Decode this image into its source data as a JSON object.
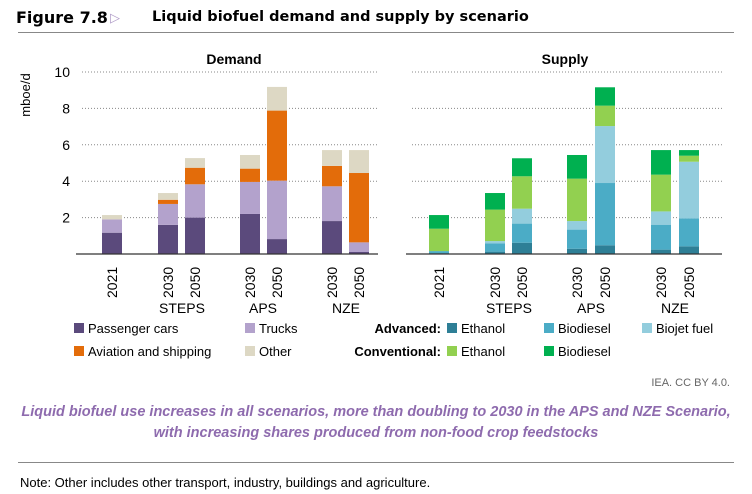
{
  "figure": {
    "label": "Figure 7.8",
    "arrow_icon": "triangle-right-icon",
    "title": "Liquid biofuel demand and supply by scenario",
    "attribution": "IEA. CC BY 4.0.",
    "caption": "Liquid biofuel use increases in all scenarios, more than doubling to 2030 in the APS and NZE Scenario, with increasing shares produced from non-food crop feedstocks",
    "note": "Note: Other includes other transport, industry, buildings and agriculture."
  },
  "chart_data": [
    {
      "type": "bar",
      "stacked": true,
      "title": "Demand",
      "ylabel": "mboe/d",
      "ylim": [
        0,
        10
      ],
      "yticks": [
        "2",
        "4",
        "6",
        "8",
        "10"
      ],
      "grid": true,
      "categories": [
        "2021",
        "2030",
        "2050",
        "2030",
        "2050",
        "2030",
        "2050"
      ],
      "groups": [
        "",
        "STEPS",
        "STEPS",
        "APS",
        "APS",
        "NZE",
        "NZE"
      ],
      "group_labels": [
        "STEPS",
        "APS",
        "NZE"
      ],
      "series": [
        {
          "name": "Passenger cars",
          "color": "#5b4a7c",
          "values": [
            1.17,
            1.6,
            2.0,
            2.2,
            0.82,
            1.81,
            0.11
          ]
        },
        {
          "name": "Trucks",
          "color": "#b3a2cc",
          "values": [
            0.73,
            1.15,
            1.83,
            1.76,
            3.21,
            1.91,
            0.53
          ]
        },
        {
          "name": "Aviation and shipping",
          "color": "#e36c0a",
          "values": [
            0,
            0.23,
            0.91,
            0.73,
            3.85,
            1.12,
            3.81
          ]
        },
        {
          "name": "Other",
          "color": "#ddd8c4",
          "values": [
            0.24,
            0.37,
            0.53,
            0.75,
            1.3,
            0.87,
            1.26
          ]
        }
      ]
    },
    {
      "type": "bar",
      "stacked": true,
      "title": "Supply",
      "ylim": [
        0,
        10
      ],
      "grid": true,
      "categories": [
        "2021",
        "2030",
        "2050",
        "2030",
        "2050",
        "2030",
        "2050"
      ],
      "groups": [
        "",
        "STEPS",
        "STEPS",
        "APS",
        "APS",
        "NZE",
        "NZE"
      ],
      "group_labels": [
        "STEPS",
        "APS",
        "NZE"
      ],
      "legend_groups": [
        "Advanced:",
        "Conventional:"
      ],
      "series": [
        {
          "group": "Advanced:",
          "name": "Ethanol",
          "color": "#2e7f96",
          "values": [
            0.05,
            0.13,
            0.62,
            0.29,
            0.48,
            0.24,
            0.42
          ]
        },
        {
          "group": "Advanced:",
          "name": "Biodiesel",
          "color": "#4bacc6",
          "values": [
            0.11,
            0.46,
            1.05,
            1.05,
            3.42,
            1.37,
            1.54
          ]
        },
        {
          "group": "Advanced:",
          "name": "Biojet fuel",
          "color": "#93cddd",
          "values": [
            0,
            0.12,
            0.82,
            0.47,
            3.13,
            0.73,
            3.11
          ]
        },
        {
          "group": "Conventional:",
          "name": "Ethanol",
          "color": "#92d050",
          "values": [
            1.23,
            1.73,
            1.78,
            2.33,
            1.12,
            2.02,
            0.33
          ]
        },
        {
          "group": "Conventional:",
          "name": "Biodiesel",
          "color": "#00b050",
          "values": [
            0.75,
            0.91,
            0.99,
            1.3,
            1.01,
            1.35,
            0.31
          ]
        }
      ]
    }
  ]
}
